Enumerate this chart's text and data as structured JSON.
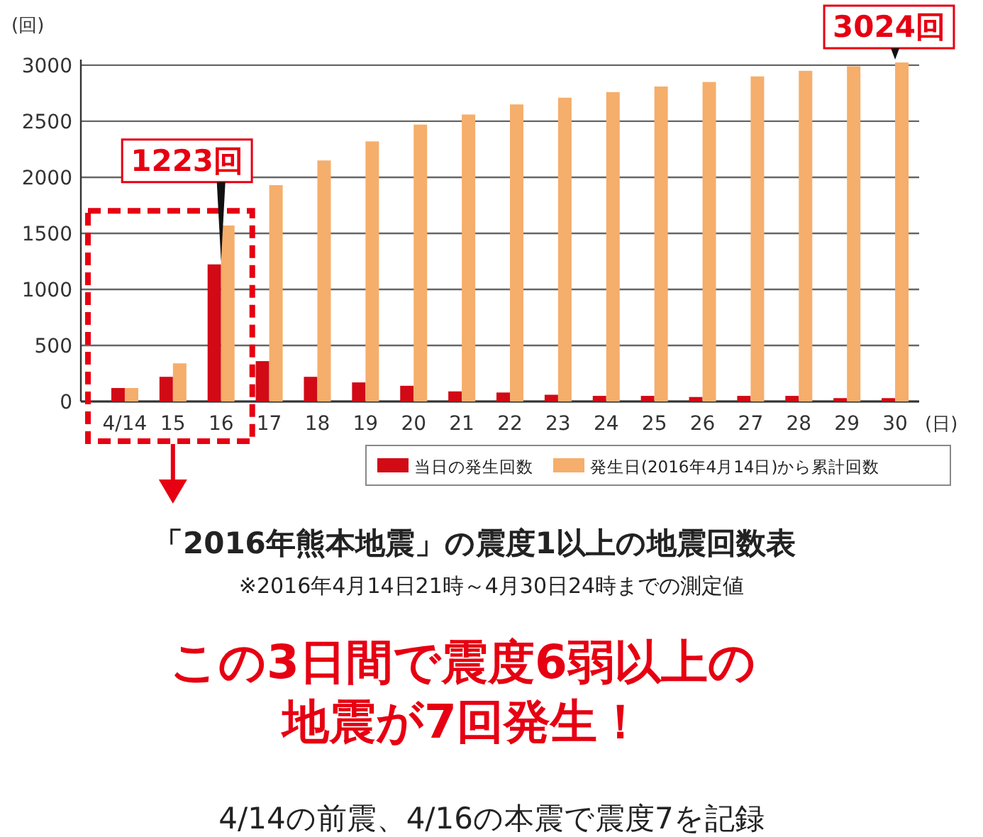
{
  "chart_data": {
    "type": "bar",
    "title": "「2016年熊本地震」の震度1以上の地震回数表",
    "subtitle": "※2016年4月14日21時～4月30日24時までの測定値",
    "ylabel": "(回)",
    "xlabel": "(日)",
    "categories": [
      "4/14",
      "15",
      "16",
      "17",
      "18",
      "19",
      "20",
      "21",
      "22",
      "23",
      "24",
      "25",
      "26",
      "27",
      "28",
      "29",
      "30"
    ],
    "series": [
      {
        "name": "当日の発生回数",
        "color": "#d10a16",
        "values": [
          120,
          220,
          1223,
          360,
          220,
          170,
          140,
          90,
          80,
          60,
          50,
          50,
          40,
          50,
          50,
          30,
          30
        ]
      },
      {
        "name": "発生日(2016年4月14日)から累計回数",
        "color": "#f5ae6b",
        "values": [
          120,
          340,
          1570,
          1930,
          2150,
          2320,
          2470,
          2560,
          2650,
          2710,
          2760,
          2810,
          2850,
          2900,
          2950,
          2990,
          3024
        ]
      }
    ],
    "ylim": [
      0,
      3050
    ],
    "yticks": [
      0,
      500,
      1000,
      1500,
      2000,
      2500,
      3000
    ],
    "grid": "y",
    "legend": "bottom right",
    "annotations": [
      {
        "text": "1223回",
        "x": "16",
        "y": 1223
      },
      {
        "text": "3024回",
        "x": "30",
        "y": 3024
      },
      "この3日間で震度6弱以上の",
      "地震が7回発生！",
      "4/14の前震、4/16の本震で震度7を記録"
    ]
  }
}
